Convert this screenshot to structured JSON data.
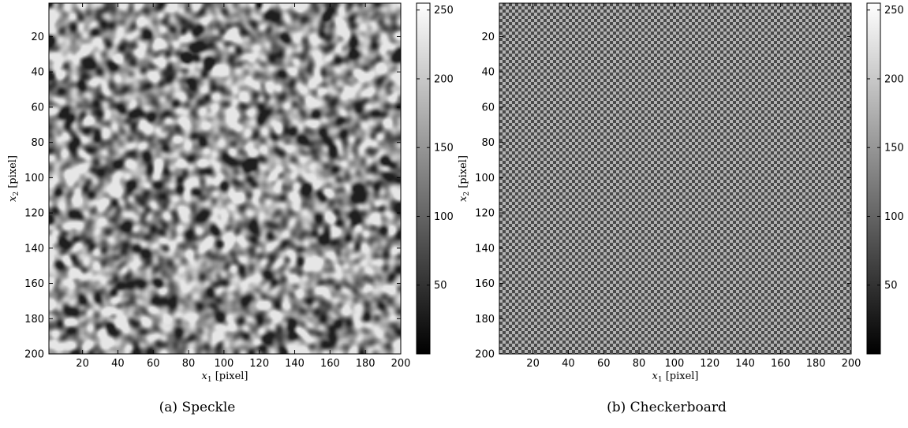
{
  "chart_data": [
    {
      "type": "heatmap",
      "caption": "(a) Speckle",
      "pattern": "speckle",
      "xlabel": "x1 [pixel]",
      "ylabel": "x2 [pixel]",
      "xlabel_parts": {
        "var": "x",
        "sub": "1",
        "unit": "[pixel]"
      },
      "ylabel_parts": {
        "var": "x",
        "sub": "2",
        "unit": "[pixel]"
      },
      "xlim": [
        1,
        200
      ],
      "ylim": [
        1,
        200
      ],
      "y_direction": "reversed",
      "xticks": [
        20,
        40,
        60,
        80,
        100,
        120,
        140,
        160,
        180,
        200
      ],
      "yticks": [
        20,
        40,
        60,
        80,
        100,
        120,
        140,
        160,
        180,
        200
      ],
      "colormap": "gray",
      "clim": [
        0,
        255
      ],
      "colorbar_ticks": [
        50,
        100,
        150,
        200,
        250
      ],
      "colorbar_placement": "right"
    },
    {
      "type": "heatmap",
      "caption": "(b) Checkerboard",
      "pattern": "checkerboard",
      "xlabel": "x1 [pixel]",
      "ylabel": "x2 [pixel]",
      "xlabel_parts": {
        "var": "x",
        "sub": "1",
        "unit": "[pixel]"
      },
      "ylabel_parts": {
        "var": "x",
        "sub": "2",
        "unit": "[pixel]"
      },
      "xlim": [
        1,
        200
      ],
      "ylim": [
        1,
        200
      ],
      "y_direction": "reversed",
      "xticks": [
        20,
        40,
        60,
        80,
        100,
        120,
        140,
        160,
        180,
        200
      ],
      "yticks": [
        20,
        40,
        60,
        80,
        100,
        120,
        140,
        160,
        180,
        200
      ],
      "colormap": "gray",
      "clim": [
        0,
        255
      ],
      "colorbar_ticks": [
        50,
        100,
        150,
        200,
        250
      ],
      "colorbar_placement": "right",
      "checker_period_px": 8
    }
  ],
  "colors": {
    "axis": "#000000",
    "background": "#ffffff",
    "checker_light": "#b3b3b3",
    "checker_dark": "#4a4a4a"
  }
}
